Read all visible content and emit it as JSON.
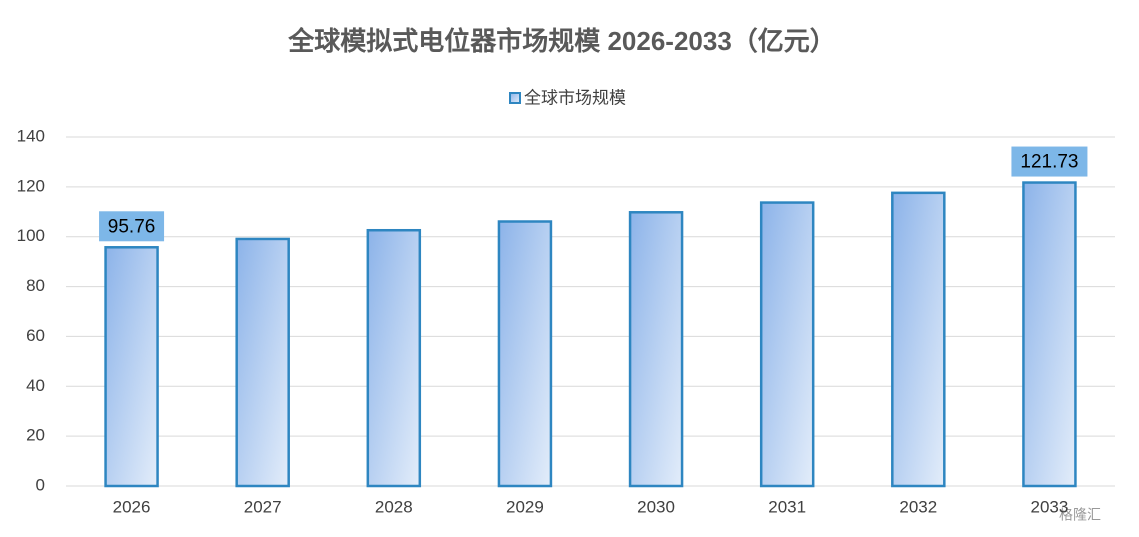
{
  "chart_data": {
    "type": "bar",
    "title": "全球模拟式电位器市场规模 2026-2033（亿元）",
    "categories": [
      "2026",
      "2027",
      "2028",
      "2029",
      "2030",
      "2031",
      "2032",
      "2033"
    ],
    "series": [
      {
        "name": "全球市场规模",
        "color": "#2e86c1",
        "values": [
          95.76,
          99.1,
          102.6,
          106.1,
          109.8,
          113.7,
          117.6,
          121.73
        ],
        "value_labels": [
          "95.76",
          null,
          null,
          null,
          null,
          null,
          null,
          "121.73"
        ]
      }
    ],
    "ylim": [
      0,
      140
    ],
    "yticks": [
      0,
      20,
      40,
      60,
      80,
      100,
      120,
      140
    ],
    "grid": true,
    "legend": "top",
    "watermark": "格隆汇"
  }
}
